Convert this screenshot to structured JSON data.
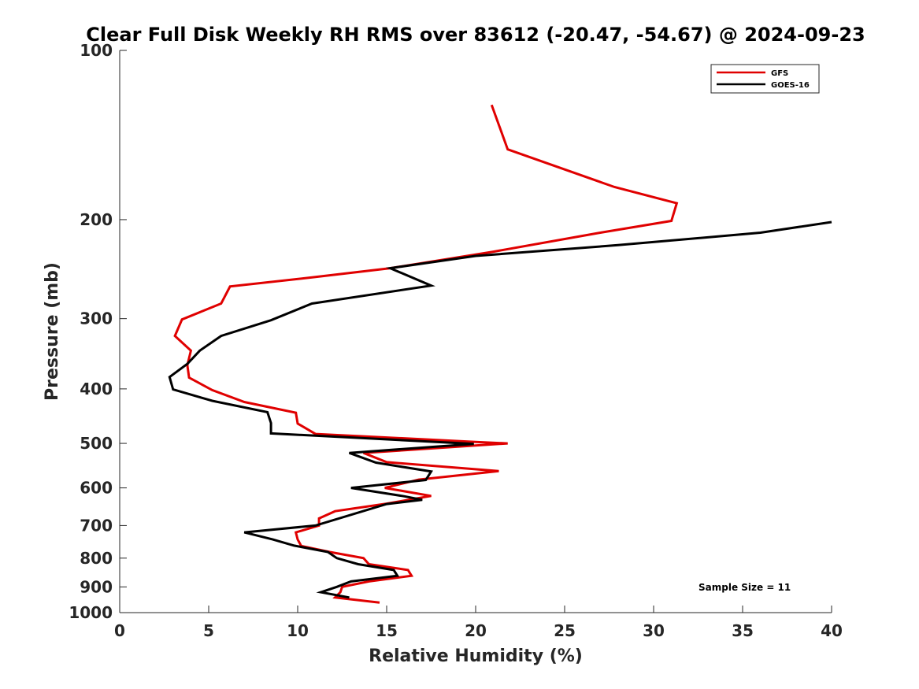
{
  "chart_data": {
    "type": "line",
    "title": "Clear Full Disk Weekly RH RMS over 83612 (-20.47, -54.67) @ 2024-09-23",
    "xlabel": "Relative Humidity (%)",
    "ylabel": "Pressure (mb)",
    "xlim": [
      0,
      40
    ],
    "ylim": [
      100,
      1000
    ],
    "yscale": "log",
    "y_reversed": true,
    "x_ticks": [
      "0",
      "5",
      "10",
      "15",
      "20",
      "25",
      "30",
      "35",
      "40"
    ],
    "y_ticks": [
      "100",
      "200",
      "300",
      "400",
      "500",
      "600",
      "700",
      "800",
      "900",
      "1000"
    ],
    "grid": false,
    "legend_position": "top-right",
    "annotation": "Sample Size = 11",
    "series": [
      {
        "name": "GFS",
        "color": "#e00000",
        "points": [
          [
            20.9,
            125
          ],
          [
            21.8,
            150
          ],
          [
            27.8,
            175
          ],
          [
            31.3,
            187
          ],
          [
            31.0,
            201
          ],
          [
            27.0,
            211
          ],
          [
            21.0,
            228
          ],
          [
            15.2,
            244
          ],
          [
            11.0,
            253
          ],
          [
            6.2,
            263
          ],
          [
            5.7,
            282
          ],
          [
            3.5,
            301
          ],
          [
            3.1,
            322
          ],
          [
            4.0,
            342
          ],
          [
            3.8,
            363
          ],
          [
            3.9,
            382
          ],
          [
            5.2,
            402
          ],
          [
            7.0,
            422
          ],
          [
            9.9,
            441
          ],
          [
            10.0,
            461
          ],
          [
            11.0,
            481
          ],
          [
            20.0,
            497
          ],
          [
            21.8,
            500
          ],
          [
            13.7,
            520
          ],
          [
            15.0,
            540
          ],
          [
            21.3,
            560
          ],
          [
            16.8,
            580
          ],
          [
            14.9,
            600
          ],
          [
            17.5,
            620
          ],
          [
            15.0,
            640
          ],
          [
            12.1,
            660
          ],
          [
            11.2,
            680
          ],
          [
            11.2,
            700
          ],
          [
            9.9,
            720
          ],
          [
            10.0,
            741
          ],
          [
            10.2,
            761
          ],
          [
            11.8,
            780
          ],
          [
            13.7,
            800
          ],
          [
            14.0,
            820
          ],
          [
            16.2,
            840
          ],
          [
            16.4,
            860
          ],
          [
            14.0,
            880
          ],
          [
            12.5,
            900
          ],
          [
            12.4,
            920
          ],
          [
            12.1,
            940
          ],
          [
            14.6,
            960
          ]
        ]
      },
      {
        "name": "GOES-16",
        "color": "#000000",
        "points": [
          [
            40.0,
            202
          ],
          [
            36.0,
            211
          ],
          [
            28.0,
            222
          ],
          [
            20.0,
            232
          ],
          [
            15.2,
            244
          ],
          [
            17.5,
            262
          ],
          [
            10.8,
            282
          ],
          [
            8.5,
            302
          ],
          [
            5.7,
            322
          ],
          [
            4.5,
            342
          ],
          [
            3.8,
            361
          ],
          [
            2.8,
            381
          ],
          [
            3.0,
            401
          ],
          [
            5.2,
            420
          ],
          [
            8.3,
            440
          ],
          [
            8.5,
            460
          ],
          [
            8.5,
            480
          ],
          [
            19.9,
            501
          ],
          [
            12.9,
            520
          ],
          [
            14.4,
            541
          ],
          [
            17.5,
            561
          ],
          [
            17.2,
            581
          ],
          [
            13.0,
            600
          ],
          [
            16.0,
            621
          ],
          [
            17.0,
            630
          ],
          [
            15.0,
            641
          ],
          [
            11.0,
            700
          ],
          [
            7.0,
            720
          ],
          [
            8.6,
            741
          ],
          [
            9.8,
            760
          ],
          [
            11.7,
            780
          ],
          [
            12.2,
            800
          ],
          [
            13.4,
            820
          ],
          [
            15.4,
            840
          ],
          [
            15.6,
            860
          ],
          [
            13.0,
            880
          ],
          [
            12.2,
            900
          ],
          [
            11.3,
            920
          ],
          [
            12.9,
            940
          ]
        ]
      }
    ]
  }
}
